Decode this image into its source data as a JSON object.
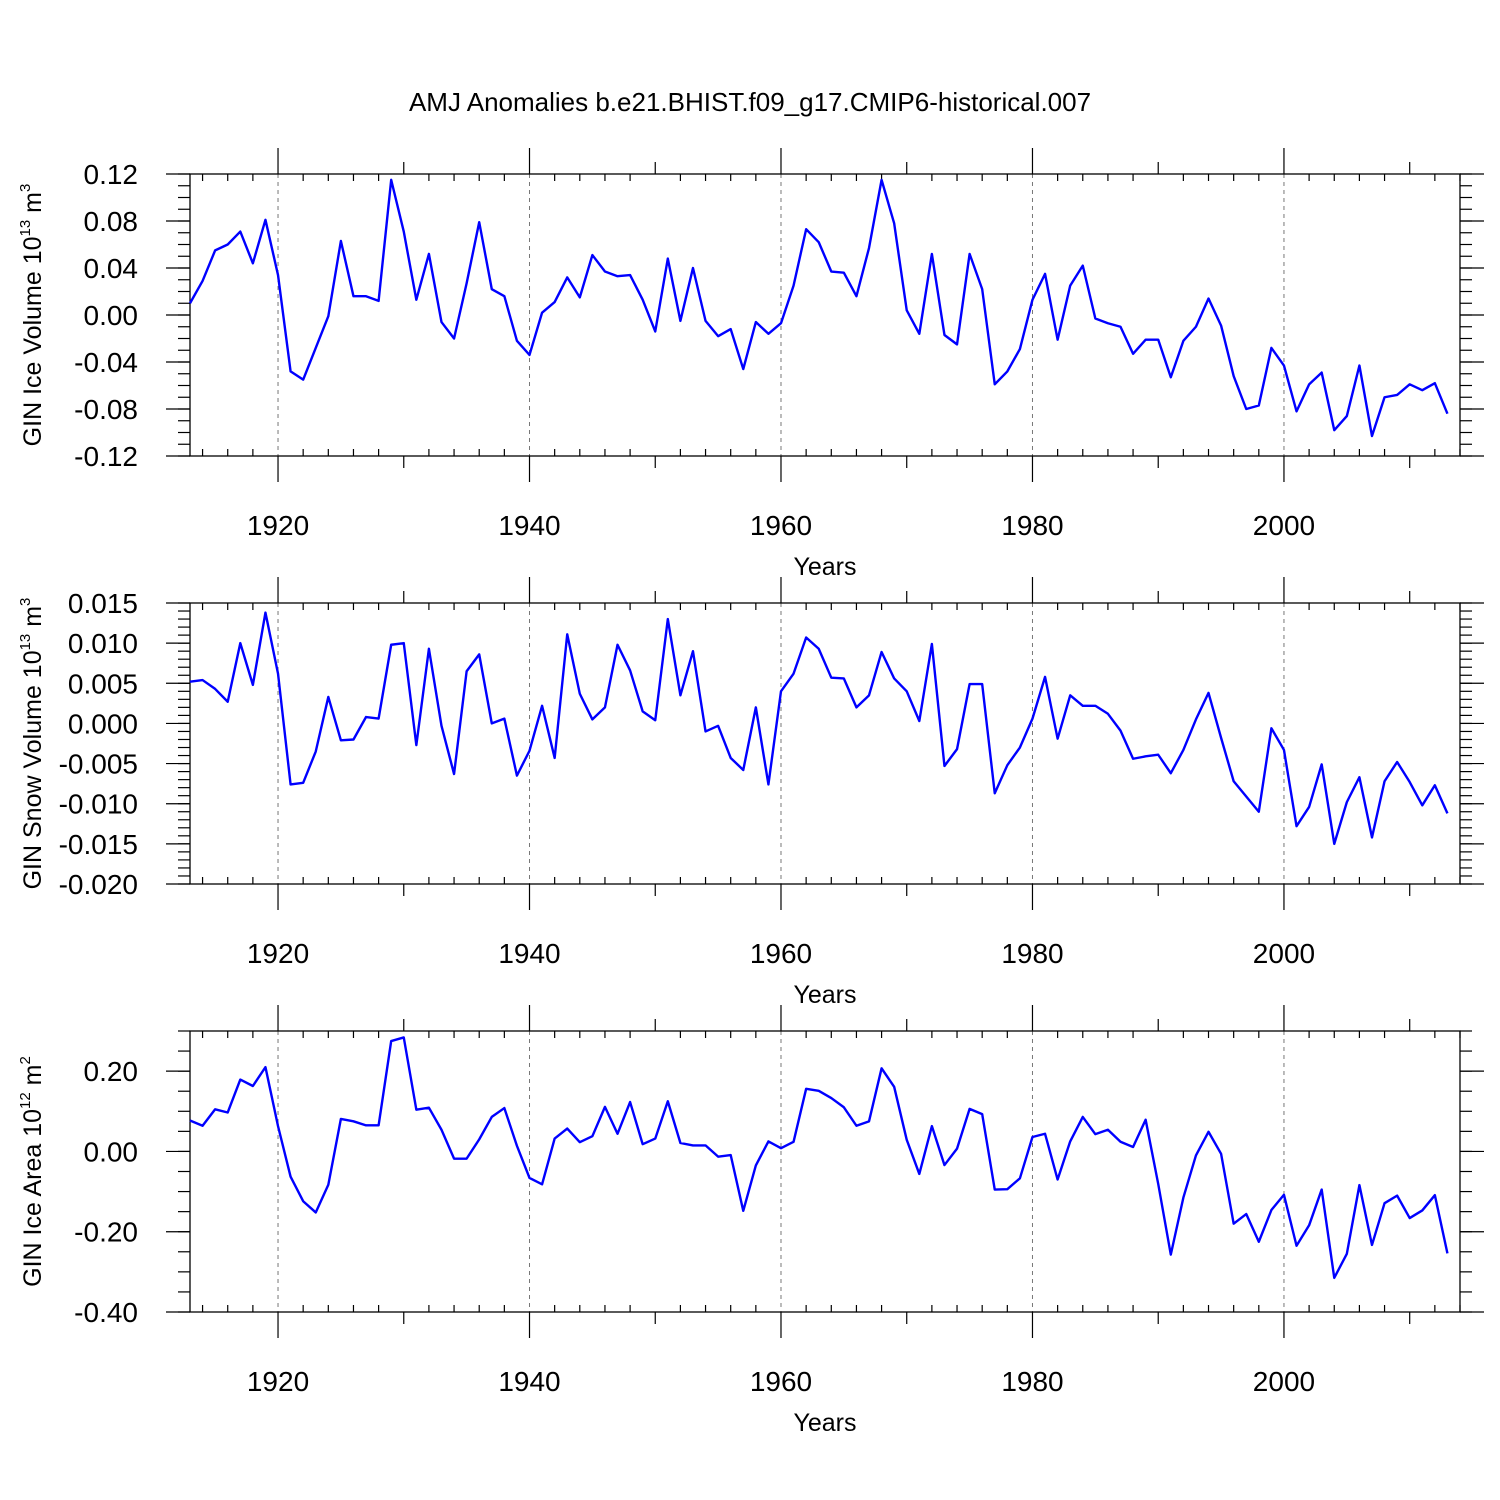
{
  "title": "AMJ Anomalies b.e21.BHIST.f09_g17.CMIP6-historical.007",
  "line_color": "#0000ff",
  "chart_data": [
    {
      "type": "line",
      "title": "AMJ Anomalies b.e21.BHIST.f09_g17.CMIP6-historical.007",
      "xlabel": "Years",
      "ylabel": {
        "main": "GIN Ice Volume 10",
        "exp": "13",
        "unit": " m",
        "unit_exp": "3"
      },
      "xlim": [
        1913,
        2014
      ],
      "ylim": [
        -0.12,
        0.12
      ],
      "xticks": [
        1920,
        1940,
        1960,
        1980,
        2000
      ],
      "xtick_labels": [
        "1920",
        "1940",
        "1960",
        "1980",
        "2000"
      ],
      "yticks": [
        -0.12,
        -0.08,
        -0.04,
        0.0,
        0.04,
        0.08,
        0.12
      ],
      "ytick_labels": [
        "-0.12",
        "-0.08",
        "-0.04",
        "0.00",
        "0.04",
        "0.08",
        "0.12"
      ],
      "y_minor_step": 0.01,
      "grid": "vertical dashed at major x ticks",
      "x_start": 1913,
      "series": [
        {
          "name": "GIN Ice Volume",
          "values": [
            0.01,
            0.029,
            0.055,
            0.06,
            0.071,
            0.044,
            0.081,
            0.034,
            -0.048,
            -0.055,
            -0.028,
            -0.001,
            0.063,
            0.016,
            0.016,
            0.012,
            0.115,
            0.071,
            0.013,
            0.052,
            -0.006,
            -0.02,
            0.027,
            0.079,
            0.022,
            0.016,
            -0.022,
            -0.034,
            0.002,
            0.011,
            0.032,
            0.015,
            0.051,
            0.037,
            0.033,
            0.034,
            0.013,
            -0.014,
            0.048,
            -0.005,
            0.04,
            -0.005,
            -0.018,
            -0.012,
            -0.046,
            -0.006,
            -0.016,
            -0.007,
            0.025,
            0.073,
            0.062,
            0.037,
            0.036,
            0.016,
            0.057,
            0.115,
            0.078,
            0.004,
            -0.016,
            0.052,
            -0.017,
            -0.025,
            0.052,
            0.022,
            -0.059,
            -0.048,
            -0.029,
            0.013,
            0.035,
            -0.021,
            0.025,
            0.042,
            -0.003,
            -0.007,
            -0.01,
            -0.033,
            -0.021,
            -0.021,
            -0.053,
            -0.022,
            -0.01,
            0.014,
            -0.009,
            -0.052,
            -0.08,
            -0.077,
            -0.028,
            -0.043,
            -0.082,
            -0.059,
            -0.049,
            -0.098,
            -0.086,
            -0.043,
            -0.103,
            -0.07,
            -0.068,
            -0.059,
            -0.064,
            -0.058,
            -0.084
          ]
        }
      ]
    },
    {
      "type": "line",
      "title": "",
      "xlabel": "Years",
      "ylabel": {
        "main": "GIN Snow Volume 10",
        "exp": "13",
        "unit": " m",
        "unit_exp": "3"
      },
      "xlim": [
        1913,
        2014
      ],
      "ylim": [
        -0.02,
        0.015
      ],
      "xticks": [
        1920,
        1940,
        1960,
        1980,
        2000
      ],
      "xtick_labels": [
        "1920",
        "1940",
        "1960",
        "1980",
        "2000"
      ],
      "yticks": [
        -0.02,
        -0.015,
        -0.01,
        -0.005,
        0.0,
        0.005,
        0.01,
        0.015
      ],
      "ytick_labels": [
        "-0.020",
        "-0.015",
        "-0.010",
        "-0.005",
        "0.000",
        "0.005",
        "0.010",
        "0.015"
      ],
      "y_minor_step": 0.001,
      "grid": "vertical dashed at major x ticks",
      "x_start": 1913,
      "series": [
        {
          "name": "GIN Snow Volume",
          "values": [
            0.0052,
            0.0054,
            0.0043,
            0.0027,
            0.01,
            0.0048,
            0.0138,
            0.0062,
            -0.0076,
            -0.0074,
            -0.0035,
            0.0033,
            -0.0021,
            -0.002,
            0.0008,
            0.0006,
            0.0098,
            0.01,
            -0.0027,
            0.0093,
            -0.0003,
            -0.0063,
            0.0065,
            0.0086,
            0.0,
            0.0006,
            -0.0065,
            -0.0034,
            0.0022,
            -0.0043,
            0.0111,
            0.0037,
            0.0005,
            0.002,
            0.0098,
            0.0066,
            0.0015,
            0.0004,
            0.013,
            0.0035,
            0.009,
            -0.001,
            -0.0003,
            -0.0043,
            -0.0058,
            0.002,
            -0.0076,
            0.004,
            0.0062,
            0.0107,
            0.0093,
            0.0057,
            0.0056,
            0.002,
            0.0035,
            0.0089,
            0.0056,
            0.004,
            0.0003,
            0.0099,
            -0.0053,
            -0.0032,
            0.0049,
            0.0049,
            -0.0087,
            -0.0052,
            -0.003,
            0.0006,
            0.0058,
            -0.0019,
            0.0035,
            0.0022,
            0.0022,
            0.0012,
            -0.0009,
            -0.0044,
            -0.0041,
            -0.0039,
            -0.0062,
            -0.0033,
            0.0005,
            0.0038,
            -0.0018,
            -0.0072,
            -0.0091,
            -0.011,
            -0.0006,
            -0.0033,
            -0.0128,
            -0.0104,
            -0.0051,
            -0.015,
            -0.0098,
            -0.0067,
            -0.0142,
            -0.0072,
            -0.0048,
            -0.0073,
            -0.0102,
            -0.0077,
            -0.0112
          ]
        }
      ]
    },
    {
      "type": "line",
      "title": "",
      "xlabel": "Years",
      "ylabel": {
        "main": "GIN Ice Area 10",
        "exp": "12",
        "unit": " m",
        "unit_exp": "2"
      },
      "xlim": [
        1913,
        2014
      ],
      "ylim": [
        -0.4,
        0.3
      ],
      "xticks": [
        1920,
        1940,
        1960,
        1980,
        2000
      ],
      "xtick_labels": [
        "1920",
        "1940",
        "1960",
        "1980",
        "2000"
      ],
      "yticks": [
        -0.4,
        -0.2,
        0.0,
        0.2
      ],
      "ytick_labels": [
        "-0.40",
        "-0.20",
        "0.00",
        "0.20"
      ],
      "y_minor_step": 0.05,
      "grid": "vertical dashed at major x ticks",
      "x_start": 1913,
      "series": [
        {
          "name": "GIN Ice Area",
          "values": [
            0.077,
            0.064,
            0.105,
            0.097,
            0.179,
            0.163,
            0.21,
            0.063,
            -0.063,
            -0.124,
            -0.152,
            -0.083,
            0.081,
            0.075,
            0.065,
            0.065,
            0.275,
            0.284,
            0.104,
            0.109,
            0.054,
            -0.018,
            -0.018,
            0.03,
            0.086,
            0.108,
            0.014,
            -0.066,
            -0.082,
            0.032,
            0.057,
            0.023,
            0.038,
            0.111,
            0.044,
            0.123,
            0.018,
            0.032,
            0.125,
            0.021,
            0.015,
            0.015,
            -0.013,
            -0.009,
            -0.148,
            -0.035,
            0.025,
            0.008,
            0.024,
            0.156,
            0.151,
            0.133,
            0.11,
            0.064,
            0.075,
            0.207,
            0.161,
            0.029,
            -0.056,
            0.063,
            -0.034,
            0.007,
            0.106,
            0.093,
            -0.095,
            -0.094,
            -0.067,
            0.036,
            0.044,
            -0.07,
            0.025,
            0.086,
            0.043,
            0.054,
            0.024,
            0.011,
            0.079,
            -0.081,
            -0.257,
            -0.115,
            -0.01,
            0.049,
            -0.006,
            -0.18,
            -0.156,
            -0.225,
            -0.146,
            -0.108,
            -0.235,
            -0.184,
            -0.095,
            -0.315,
            -0.255,
            -0.084,
            -0.233,
            -0.129,
            -0.11,
            -0.166,
            -0.147,
            -0.109,
            -0.254
          ]
        }
      ]
    }
  ]
}
